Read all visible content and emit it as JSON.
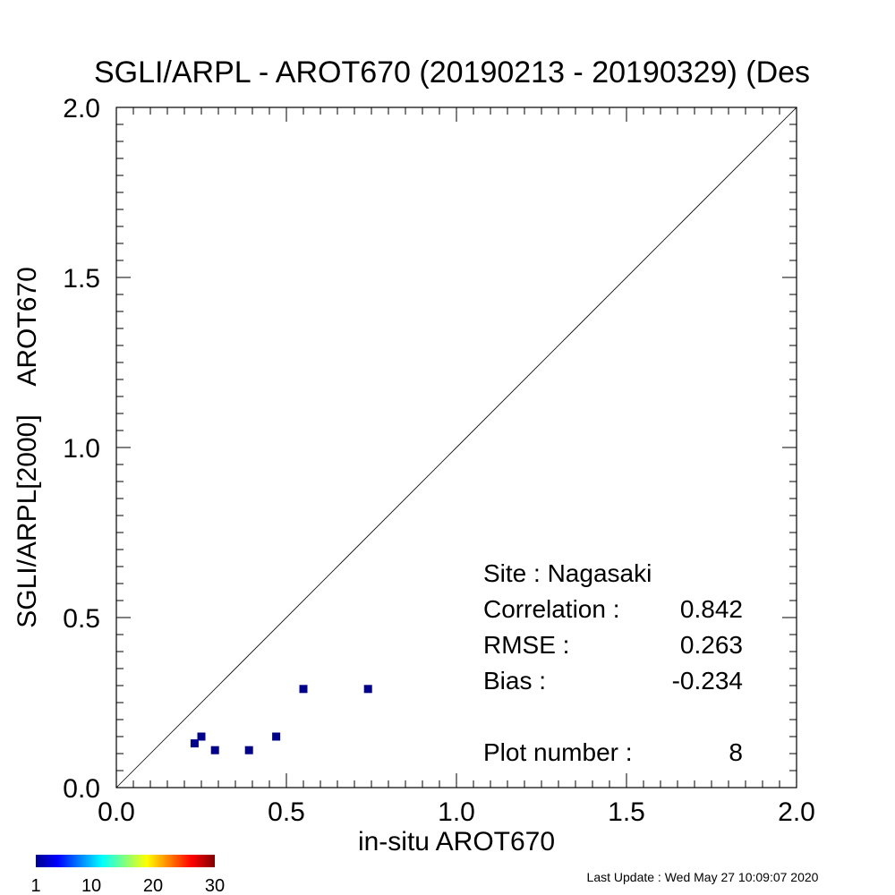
{
  "chart_data": {
    "type": "scatter",
    "title": "SGLI/ARPL - AROT670 (20190213 - 20190329) (Des",
    "xlabel": "in-situ AROT670",
    "ylabel": "SGLI/ARPL[2000]    AROT670",
    "xlim": [
      0.0,
      2.0
    ],
    "ylim": [
      0.0,
      2.0
    ],
    "x_ticks": [
      "0.0",
      "0.5",
      "1.0",
      "1.5",
      "2.0"
    ],
    "y_ticks": [
      "0.0",
      "0.5",
      "1.0",
      "1.5",
      "2.0"
    ],
    "one_to_one_line": true,
    "points": [
      {
        "x": 0.23,
        "y": 0.13
      },
      {
        "x": 0.25,
        "y": 0.15
      },
      {
        "x": 0.29,
        "y": 0.11
      },
      {
        "x": 0.39,
        "y": 0.11
      },
      {
        "x": 0.47,
        "y": 0.15
      },
      {
        "x": 0.55,
        "y": 0.29
      },
      {
        "x": 0.74,
        "y": 0.29
      }
    ],
    "point_color": "#00008f",
    "stats": [
      {
        "label": "Site : Nagasaki",
        "value": ""
      },
      {
        "label": "Correlation :",
        "value": "0.842"
      },
      {
        "label": "RMSE :",
        "value": "0.263"
      },
      {
        "label": "Bias :",
        "value": "-0.234"
      },
      {
        "label": "Plot number :",
        "value": "8"
      }
    ],
    "colorbar": {
      "ticks": [
        "1",
        "10",
        "20",
        "30"
      ],
      "colors": [
        "#00008f",
        "#0000ff",
        "#00ffff",
        "#ffff00",
        "#ff0000",
        "#800000"
      ]
    },
    "footer": "Last Update : Wed May 27 10:09:07 2020"
  }
}
